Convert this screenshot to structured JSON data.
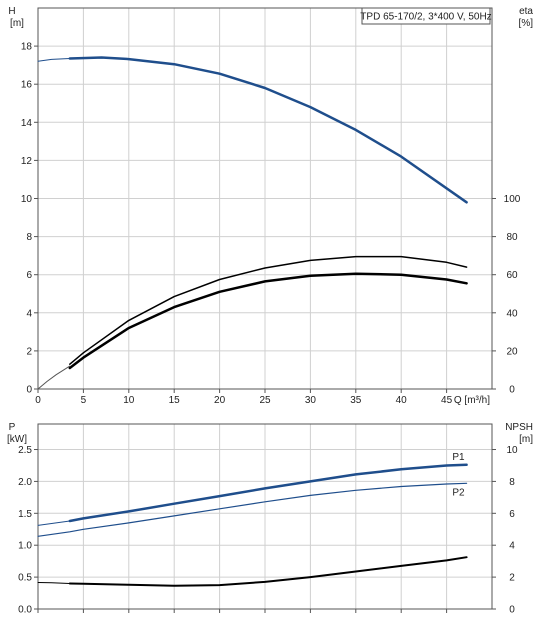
{
  "chart_data": [
    {
      "type": "line",
      "title": "TPD 65-170/2, 3*400 V, 50Hz",
      "x_axis": {
        "label": "Q [m³/h]",
        "range": [
          0,
          50
        ],
        "ticks": [
          0,
          5,
          10,
          15,
          20,
          25,
          30,
          35,
          40,
          45
        ]
      },
      "y_axis_left": {
        "label": "H",
        "unit": "[m]",
        "range": [
          0,
          20
        ],
        "ticks": [
          0,
          2,
          4,
          6,
          8,
          10,
          12,
          14,
          16,
          18
        ]
      },
      "y_axis_right": {
        "label": "eta",
        "unit": "[%]",
        "range": [
          0,
          200
        ],
        "ticks": [
          0,
          20,
          40,
          60,
          80,
          100
        ]
      },
      "grid": true,
      "series": [
        {
          "name": "",
          "axis": "left",
          "color": "#1f4e8c",
          "width": 2.5,
          "x": [
            3.5,
            7,
            10,
            15,
            20,
            25,
            30,
            35,
            40,
            47.2
          ],
          "values": [
            17.35,
            17.4,
            17.32,
            17.05,
            16.55,
            15.8,
            14.8,
            13.6,
            12.2,
            9.8
          ]
        },
        {
          "name": "",
          "axis": "left",
          "color": "#1f4e8c",
          "width": 1,
          "x": [
            0,
            1.5,
            3.5
          ],
          "values": [
            17.2,
            17.3,
            17.35
          ]
        },
        {
          "name": "",
          "axis": "right",
          "color": "#000000",
          "width": 1.5,
          "x": [
            3.5,
            5,
            10,
            15,
            20,
            25,
            30,
            35,
            40,
            45,
            47.2
          ],
          "values": [
            13,
            19,
            36,
            48.5,
            57.5,
            63.5,
            67.5,
            69.5,
            69.5,
            66.5,
            64
          ]
        },
        {
          "name": "",
          "axis": "right",
          "color": "#000000",
          "width": 2.5,
          "x": [
            3.5,
            5,
            10,
            15,
            20,
            25,
            30,
            35,
            40,
            45,
            47.2
          ],
          "values": [
            11,
            16.5,
            32,
            43,
            51,
            56.5,
            59.5,
            60.5,
            60,
            57.5,
            55.5
          ]
        },
        {
          "name": "",
          "axis": "right",
          "color": "#555555",
          "width": 1,
          "x": [
            0,
            1,
            2,
            3.5
          ],
          "values": [
            0,
            4,
            7.5,
            12
          ]
        }
      ]
    },
    {
      "type": "line",
      "x_axis": {
        "range": [
          0,
          50
        ],
        "ticks": [
          0,
          5,
          10,
          15,
          20,
          25,
          30,
          35,
          40,
          45
        ]
      },
      "y_axis_left": {
        "label": "P",
        "unit": "[kW]",
        "range": [
          0,
          2.9
        ],
        "ticks": [
          0.0,
          0.5,
          1.0,
          1.5,
          2.0,
          2.5
        ],
        "tick_labels": [
          "0.0",
          "0.5",
          "1.0",
          "1.5",
          "2.0",
          "2.5"
        ]
      },
      "y_axis_right": {
        "label": "NPSH",
        "unit": "[m]",
        "range": [
          0,
          11.6
        ],
        "ticks": [
          0,
          2,
          4,
          6,
          8,
          10
        ]
      },
      "grid": true,
      "series": [
        {
          "name": "P1",
          "axis": "left",
          "color": "#1f4e8c",
          "width": 2.5,
          "x": [
            3.5,
            5,
            10,
            15,
            20,
            25,
            30,
            35,
            40,
            45,
            47.2
          ],
          "values": [
            1.38,
            1.42,
            1.53,
            1.65,
            1.77,
            1.89,
            2.0,
            2.11,
            2.19,
            2.25,
            2.26
          ]
        },
        {
          "name": "",
          "axis": "left",
          "color": "#1f4e8c",
          "width": 1,
          "x": [
            0,
            1.5,
            3.5
          ],
          "values": [
            1.31,
            1.34,
            1.38
          ]
        },
        {
          "name": "P2",
          "axis": "left",
          "color": "#1f4e8c",
          "width": 1.2,
          "x": [
            0,
            3.5,
            5,
            10,
            15,
            20,
            25,
            30,
            35,
            40,
            45,
            47.2
          ],
          "values": [
            1.14,
            1.21,
            1.25,
            1.35,
            1.46,
            1.57,
            1.68,
            1.78,
            1.86,
            1.92,
            1.96,
            1.97
          ]
        },
        {
          "name": "",
          "axis": "right",
          "color": "#000000",
          "width": 2,
          "x": [
            3.5,
            5,
            10,
            15,
            20,
            25,
            30,
            35,
            40,
            45,
            47.2
          ],
          "values": [
            1.6,
            1.58,
            1.52,
            1.46,
            1.5,
            1.7,
            2.0,
            2.35,
            2.7,
            3.05,
            3.25
          ]
        },
        {
          "name": "",
          "axis": "right",
          "color": "#000000",
          "width": 1,
          "x": [
            0,
            1.5,
            3.5
          ],
          "values": [
            1.66,
            1.64,
            1.6
          ]
        }
      ]
    }
  ]
}
